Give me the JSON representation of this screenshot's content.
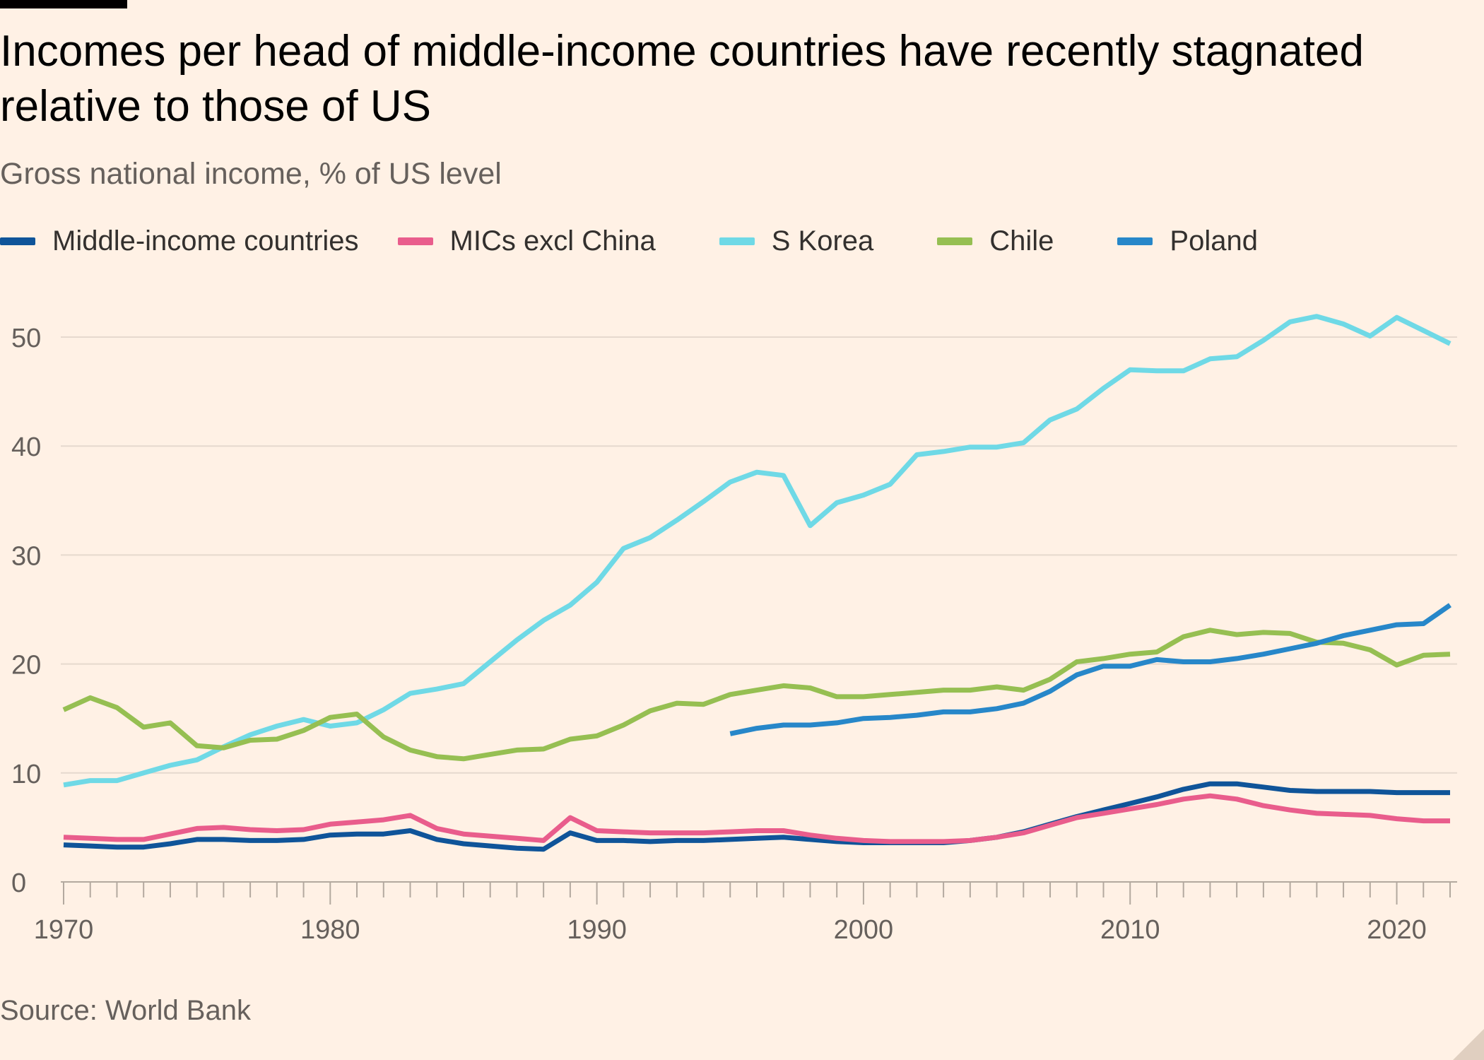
{
  "title": "Incomes per head of middle-income countries have recently stagnated relative to those of US",
  "subtitle": "Gross national income, % of US level",
  "source": "Source: World Bank",
  "chart_data": {
    "type": "line",
    "title": "Incomes per head of middle-income countries have recently stagnated relative to those of US",
    "subtitle": "Gross national income, % of US level",
    "xlabel": "",
    "ylabel": "",
    "xlim": [
      1970,
      2022
    ],
    "ylim": [
      0,
      55
    ],
    "x_ticks": [
      1970,
      1980,
      1990,
      2000,
      2010,
      2020
    ],
    "y_ticks": [
      0,
      10,
      20,
      30,
      40,
      50
    ],
    "grid": "horizontal",
    "legend_position": "top",
    "series": [
      {
        "name": "Middle-income countries",
        "color": "#0f5499",
        "start": 1970,
        "values": [
          3.4,
          3.3,
          3.2,
          3.2,
          3.5,
          3.9,
          3.9,
          3.8,
          3.8,
          3.9,
          4.3,
          4.4,
          4.4,
          4.7,
          3.9,
          3.5,
          3.3,
          3.1,
          3.0,
          4.5,
          3.8,
          3.8,
          3.7,
          3.8,
          3.8,
          3.9,
          4.0,
          4.1,
          3.9,
          3.7,
          3.6,
          3.6,
          3.6,
          3.6,
          3.8,
          4.1,
          4.6,
          5.3,
          6.0,
          6.6,
          7.2,
          7.8,
          8.5,
          9.0,
          9.0,
          8.7,
          8.4,
          8.3,
          8.3,
          8.3,
          8.2,
          8.2,
          8.2
        ]
      },
      {
        "name": "MICs excl China",
        "color": "#e95d8c",
        "start": 1970,
        "values": [
          4.1,
          4.0,
          3.9,
          3.9,
          4.4,
          4.9,
          5.0,
          4.8,
          4.7,
          4.8,
          5.3,
          5.5,
          5.7,
          6.1,
          4.9,
          4.4,
          4.2,
          4.0,
          3.8,
          5.9,
          4.7,
          4.6,
          4.5,
          4.5,
          4.5,
          4.6,
          4.7,
          4.7,
          4.3,
          4.0,
          3.8,
          3.7,
          3.7,
          3.7,
          3.8,
          4.1,
          4.5,
          5.2,
          5.9,
          6.3,
          6.7,
          7.1,
          7.6,
          7.9,
          7.6,
          7.0,
          6.6,
          6.3,
          6.2,
          6.1,
          5.8,
          5.6,
          5.6
        ]
      },
      {
        "name": "S Korea",
        "color": "#6fd9e6",
        "start": 1970,
        "values": [
          8.9,
          9.3,
          9.3,
          10.0,
          10.7,
          11.2,
          12.4,
          13.5,
          14.3,
          14.9,
          14.3,
          14.6,
          15.8,
          17.3,
          17.7,
          18.2,
          20.2,
          22.2,
          24.0,
          25.4,
          27.5,
          30.6,
          31.6,
          33.2,
          34.9,
          36.7,
          37.6,
          37.3,
          32.7,
          34.8,
          35.5,
          36.5,
          39.2,
          39.5,
          39.9,
          39.9,
          40.3,
          42.4,
          43.4,
          45.3,
          47.0,
          46.9,
          46.9,
          48.0,
          48.2,
          49.7,
          51.4,
          51.9,
          51.2,
          50.1,
          51.8,
          50.6,
          49.4
        ]
      },
      {
        "name": "Chile",
        "color": "#96bf52",
        "start": 1970,
        "values": [
          15.8,
          16.9,
          16.0,
          14.2,
          14.6,
          12.5,
          12.3,
          13.0,
          13.1,
          13.9,
          15.1,
          15.4,
          13.3,
          12.1,
          11.5,
          11.3,
          11.7,
          12.1,
          12.2,
          13.1,
          13.4,
          14.4,
          15.7,
          16.4,
          16.3,
          17.2,
          17.6,
          18.0,
          17.8,
          17.0,
          17.0,
          17.2,
          17.4,
          17.6,
          17.6,
          17.9,
          17.6,
          18.6,
          20.2,
          20.5,
          20.9,
          21.1,
          22.5,
          23.1,
          22.7,
          22.9,
          22.8,
          22.0,
          21.9,
          21.3,
          19.9,
          20.8,
          20.9
        ]
      },
      {
        "name": "Poland",
        "color": "#2787c9",
        "start": 1995,
        "values": [
          13.6,
          14.1,
          14.4,
          14.4,
          14.6,
          15.0,
          15.1,
          15.3,
          15.6,
          15.6,
          15.9,
          16.4,
          17.5,
          19.0,
          19.8,
          19.8,
          20.4,
          20.2,
          20.2,
          20.5,
          20.9,
          21.4,
          21.9,
          22.6,
          23.1,
          23.6,
          23.7,
          25.4
        ]
      }
    ]
  }
}
